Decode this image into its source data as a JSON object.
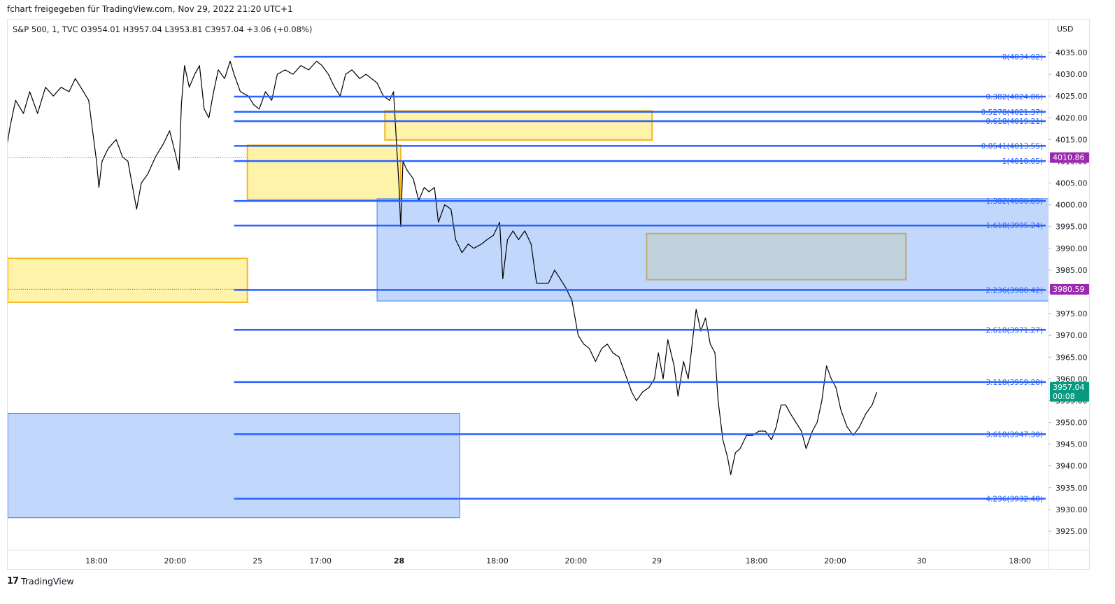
{
  "header": {
    "note": "fchart freigegeben für TradingView.com, Nov 29, 2022 21:20 UTC+1"
  },
  "footer": {
    "logo_mark": "17",
    "logo_text": "TradingView"
  },
  "chart_data": {
    "type": "line",
    "symbol_line": "S&P 500, 1, TVC  O3954.01  H3957.04  L3953.81  C3957.04  +3.06 (+0.08%)",
    "currency": "USD",
    "ylim": [
      3922,
      4039
    ],
    "y_ticks": [
      3925,
      3930,
      3935,
      3940,
      3945,
      3950,
      3955,
      3960,
      3965,
      3970,
      3975,
      3980,
      3985,
      3990,
      3995,
      4000,
      4005,
      4010,
      4015,
      4020,
      4025,
      4030,
      4035
    ],
    "y_tick_labels": [
      "3925.00",
      "3930.00",
      "3935.00",
      "3940.00",
      "3945.00",
      "3950.00",
      "3955.00",
      "3960.00",
      "3965.00",
      "3970.00",
      "3975.00",
      "3980.00",
      "3985.00",
      "3990.00",
      "3995.00",
      "4000.00",
      "4005.00",
      "4010.00",
      "4015.00",
      "4020.00",
      "4025.00",
      "4030.00",
      "4035.00"
    ],
    "x_ticks": [
      {
        "label": "18:00",
        "t": 1.15,
        "bold": false
      },
      {
        "label": "20:00",
        "t": 2.15,
        "bold": false
      },
      {
        "label": "25",
        "t": 3.2,
        "bold": false
      },
      {
        "label": "17:00",
        "t": 4.0,
        "bold": false
      },
      {
        "label": "28",
        "t": 5.0,
        "bold": true
      },
      {
        "label": "18:00",
        "t": 6.25,
        "bold": false
      },
      {
        "label": "20:00",
        "t": 7.25,
        "bold": false
      },
      {
        "label": "29",
        "t": 8.28,
        "bold": false
      },
      {
        "label": "18:00",
        "t": 9.55,
        "bold": false
      },
      {
        "label": "20:00",
        "t": 10.55,
        "bold": false
      },
      {
        "label": "30",
        "t": 11.65,
        "bold": false
      },
      {
        "label": "18:00",
        "t": 12.9,
        "bold": false
      }
    ],
    "xlim": [
      0,
      13.3
    ],
    "fib_levels": [
      {
        "ratio": "0",
        "value": 4034.02,
        "label": "0(4034.02)"
      },
      {
        "ratio": "0.382",
        "value": 4024.86,
        "label": "0.382(4024.86)"
      },
      {
        "ratio": "0.5278",
        "value": 4021.37,
        "label": "0.5278(4021.37)"
      },
      {
        "ratio": "0.618",
        "value": 4019.21,
        "label": "0.618(4019.21)"
      },
      {
        "ratio": "0.8541",
        "value": 4013.55,
        "label": "0.8541(4013.55)"
      },
      {
        "ratio": "1",
        "value": 4010.05,
        "label": "1(4010.05)"
      },
      {
        "ratio": "1.382",
        "value": 4000.89,
        "label": "1.382(4000.89)"
      },
      {
        "ratio": "1.618",
        "value": 3995.24,
        "label": "1.618(3995.24)"
      },
      {
        "ratio": "2.236",
        "value": 3980.42,
        "label": "2.236(3980.42)"
      },
      {
        "ratio": "2.618",
        "value": 3971.27,
        "label": "2.618(3971.27)"
      },
      {
        "ratio": "3.118",
        "value": 3959.28,
        "label": "3.118(3959.28)"
      },
      {
        "ratio": "3.618",
        "value": 3947.3,
        "label": "3.618(3947.30)"
      },
      {
        "ratio": "4.236",
        "value": 3932.48,
        "label": "4.236(3932.48)"
      }
    ],
    "fib_start_t": 2.9,
    "zones": [
      {
        "kind": "supply",
        "t0": 0.0,
        "t1": 3.07,
        "y0": 3977.6,
        "y1": 3987.7
      },
      {
        "kind": "supply",
        "t0": 3.07,
        "t1": 5.02,
        "y0": 4001.2,
        "y1": 4013.7
      },
      {
        "kind": "supply",
        "t0": 4.82,
        "t1": 8.22,
        "y0": 4014.9,
        "y1": 4021.6
      },
      {
        "kind": "supply-on-demand",
        "t0": 8.15,
        "t1": 11.45,
        "y0": 3982.8,
        "y1": 3993.4
      },
      {
        "kind": "demand",
        "t0": 4.72,
        "t1": 13.3,
        "y0": 3977.9,
        "y1": 4001.4
      },
      {
        "kind": "demand",
        "t0": 0.0,
        "t1": 5.77,
        "y0": 3928.1,
        "y1": 3952.1
      }
    ],
    "price_badges": [
      {
        "value": 4010.86,
        "label": "4010.86",
        "color": "#9c27b0"
      },
      {
        "value": 3980.59,
        "label": "3980.59",
        "color": "#9c27b0"
      },
      {
        "value": 3957.04,
        "label": "3957.04",
        "sub": "00:08",
        "color": "#089981"
      }
    ],
    "dotted_lines": [
      {
        "value": 4010.86,
        "t0": 0.0,
        "t1": 3.07
      },
      {
        "value": 3980.59,
        "t0": 0.0,
        "t1": 3.07
      }
    ],
    "price_series": [
      {
        "t": 0.0,
        "y": 4012.5
      },
      {
        "t": 0.05,
        "y": 4018
      },
      {
        "t": 0.12,
        "y": 4024
      },
      {
        "t": 0.22,
        "y": 4021
      },
      {
        "t": 0.3,
        "y": 4026
      },
      {
        "t": 0.4,
        "y": 4021
      },
      {
        "t": 0.5,
        "y": 4027
      },
      {
        "t": 0.6,
        "y": 4025
      },
      {
        "t": 0.7,
        "y": 4027
      },
      {
        "t": 0.8,
        "y": 4026
      },
      {
        "t": 0.88,
        "y": 4029
      },
      {
        "t": 0.95,
        "y": 4027
      },
      {
        "t": 1.05,
        "y": 4024
      },
      {
        "t": 1.1,
        "y": 4017
      },
      {
        "t": 1.15,
        "y": 4010
      },
      {
        "t": 1.18,
        "y": 4004
      },
      {
        "t": 1.22,
        "y": 4010
      },
      {
        "t": 1.3,
        "y": 4013
      },
      {
        "t": 1.4,
        "y": 4015
      },
      {
        "t": 1.48,
        "y": 4011
      },
      {
        "t": 1.55,
        "y": 4010
      },
      {
        "t": 1.62,
        "y": 4003
      },
      {
        "t": 1.66,
        "y": 3999
      },
      {
        "t": 1.72,
        "y": 4005
      },
      {
        "t": 1.8,
        "y": 4007
      },
      {
        "t": 1.9,
        "y": 4011
      },
      {
        "t": 2.0,
        "y": 4014
      },
      {
        "t": 2.08,
        "y": 4017
      },
      {
        "t": 2.15,
        "y": 4012
      },
      {
        "t": 2.2,
        "y": 4008
      },
      {
        "t": 2.23,
        "y": 4023
      },
      {
        "t": 2.27,
        "y": 4032
      },
      {
        "t": 2.33,
        "y": 4027
      },
      {
        "t": 2.4,
        "y": 4030
      },
      {
        "t": 2.46,
        "y": 4032
      },
      {
        "t": 2.52,
        "y": 4022
      },
      {
        "t": 2.58,
        "y": 4020
      },
      {
        "t": 2.64,
        "y": 4026
      },
      {
        "t": 2.7,
        "y": 4031
      },
      {
        "t": 2.78,
        "y": 4029
      },
      {
        "t": 2.85,
        "y": 4033
      },
      {
        "t": 2.9,
        "y": 4030
      },
      {
        "t": 2.98,
        "y": 4026
      },
      {
        "t": 3.08,
        "y": 4025
      },
      {
        "t": 3.15,
        "y": 4023
      },
      {
        "t": 3.22,
        "y": 4022
      },
      {
        "t": 3.3,
        "y": 4026
      },
      {
        "t": 3.38,
        "y": 4024
      },
      {
        "t": 3.45,
        "y": 4030
      },
      {
        "t": 3.55,
        "y": 4031
      },
      {
        "t": 3.65,
        "y": 4030
      },
      {
        "t": 3.75,
        "y": 4032
      },
      {
        "t": 3.85,
        "y": 4031
      },
      {
        "t": 3.95,
        "y": 4033
      },
      {
        "t": 4.02,
        "y": 4032
      },
      {
        "t": 4.1,
        "y": 4030
      },
      {
        "t": 4.18,
        "y": 4027
      },
      {
        "t": 4.25,
        "y": 4025
      },
      {
        "t": 4.32,
        "y": 4030
      },
      {
        "t": 4.4,
        "y": 4031
      },
      {
        "t": 4.5,
        "y": 4029
      },
      {
        "t": 4.58,
        "y": 4030
      },
      {
        "t": 4.65,
        "y": 4029
      },
      {
        "t": 4.72,
        "y": 4028
      },
      {
        "t": 4.8,
        "y": 4025
      },
      {
        "t": 4.88,
        "y": 4024
      },
      {
        "t": 4.93,
        "y": 4026
      },
      {
        "t": 5.0,
        "y": 4004
      },
      {
        "t": 5.02,
        "y": 3995
      },
      {
        "t": 5.05,
        "y": 4010
      },
      {
        "t": 5.1,
        "y": 4008
      },
      {
        "t": 5.18,
        "y": 4006
      },
      {
        "t": 5.25,
        "y": 4001
      },
      {
        "t": 5.32,
        "y": 4004
      },
      {
        "t": 5.38,
        "y": 4003
      },
      {
        "t": 5.45,
        "y": 4004
      },
      {
        "t": 5.5,
        "y": 3996
      },
      {
        "t": 5.58,
        "y": 4000
      },
      {
        "t": 5.66,
        "y": 3999
      },
      {
        "t": 5.72,
        "y": 3992
      },
      {
        "t": 5.8,
        "y": 3989
      },
      {
        "t": 5.88,
        "y": 3991
      },
      {
        "t": 5.95,
        "y": 3990
      },
      {
        "t": 6.05,
        "y": 3991
      },
      {
        "t": 6.12,
        "y": 3992
      },
      {
        "t": 6.2,
        "y": 3993
      },
      {
        "t": 6.28,
        "y": 3996
      },
      {
        "t": 6.32,
        "y": 3983
      },
      {
        "t": 6.38,
        "y": 3992
      },
      {
        "t": 6.45,
        "y": 3994
      },
      {
        "t": 6.52,
        "y": 3992
      },
      {
        "t": 6.6,
        "y": 3994
      },
      {
        "t": 6.68,
        "y": 3991
      },
      {
        "t": 6.75,
        "y": 3982
      },
      {
        "t": 6.82,
        "y": 3982
      },
      {
        "t": 6.9,
        "y": 3982
      },
      {
        "t": 6.98,
        "y": 3985
      },
      {
        "t": 7.05,
        "y": 3983
      },
      {
        "t": 7.12,
        "y": 3981
      },
      {
        "t": 7.2,
        "y": 3978
      },
      {
        "t": 7.28,
        "y": 3970
      },
      {
        "t": 7.35,
        "y": 3968
      },
      {
        "t": 7.42,
        "y": 3967
      },
      {
        "t": 7.5,
        "y": 3964
      },
      {
        "t": 7.58,
        "y": 3967
      },
      {
        "t": 7.65,
        "y": 3968
      },
      {
        "t": 7.72,
        "y": 3966
      },
      {
        "t": 7.8,
        "y": 3965
      },
      {
        "t": 7.88,
        "y": 3961
      },
      {
        "t": 7.96,
        "y": 3957
      },
      {
        "t": 8.02,
        "y": 3955
      },
      {
        "t": 8.1,
        "y": 3957
      },
      {
        "t": 8.18,
        "y": 3958
      },
      {
        "t": 8.25,
        "y": 3960
      },
      {
        "t": 8.3,
        "y": 3966
      },
      {
        "t": 8.36,
        "y": 3960
      },
      {
        "t": 8.42,
        "y": 3969
      },
      {
        "t": 8.5,
        "y": 3963
      },
      {
        "t": 8.55,
        "y": 3956
      },
      {
        "t": 8.62,
        "y": 3964
      },
      {
        "t": 8.68,
        "y": 3960
      },
      {
        "t": 8.73,
        "y": 3968
      },
      {
        "t": 8.78,
        "y": 3976
      },
      {
        "t": 8.84,
        "y": 3971
      },
      {
        "t": 8.9,
        "y": 3974
      },
      {
        "t": 8.96,
        "y": 3968
      },
      {
        "t": 9.02,
        "y": 3966
      },
      {
        "t": 9.06,
        "y": 3955
      },
      {
        "t": 9.12,
        "y": 3946
      },
      {
        "t": 9.18,
        "y": 3942
      },
      {
        "t": 9.22,
        "y": 3938
      },
      {
        "t": 9.28,
        "y": 3943
      },
      {
        "t": 9.34,
        "y": 3944
      },
      {
        "t": 9.42,
        "y": 3947
      },
      {
        "t": 9.5,
        "y": 3947
      },
      {
        "t": 9.58,
        "y": 3948
      },
      {
        "t": 9.66,
        "y": 3948
      },
      {
        "t": 9.74,
        "y": 3946
      },
      {
        "t": 9.8,
        "y": 3949
      },
      {
        "t": 9.86,
        "y": 3954
      },
      {
        "t": 9.92,
        "y": 3954
      },
      {
        "t": 9.98,
        "y": 3952
      },
      {
        "t": 10.05,
        "y": 3950
      },
      {
        "t": 10.12,
        "y": 3948
      },
      {
        "t": 10.18,
        "y": 3944
      },
      {
        "t": 10.26,
        "y": 3948
      },
      {
        "t": 10.32,
        "y": 3950
      },
      {
        "t": 10.38,
        "y": 3955
      },
      {
        "t": 10.44,
        "y": 3963
      },
      {
        "t": 10.5,
        "y": 3960
      },
      {
        "t": 10.56,
        "y": 3958
      },
      {
        "t": 10.62,
        "y": 3953
      },
      {
        "t": 10.7,
        "y": 3949
      },
      {
        "t": 10.78,
        "y": 3947
      },
      {
        "t": 10.86,
        "y": 3949
      },
      {
        "t": 10.94,
        "y": 3952
      },
      {
        "t": 11.02,
        "y": 3954
      },
      {
        "t": 11.08,
        "y": 3957
      }
    ]
  }
}
